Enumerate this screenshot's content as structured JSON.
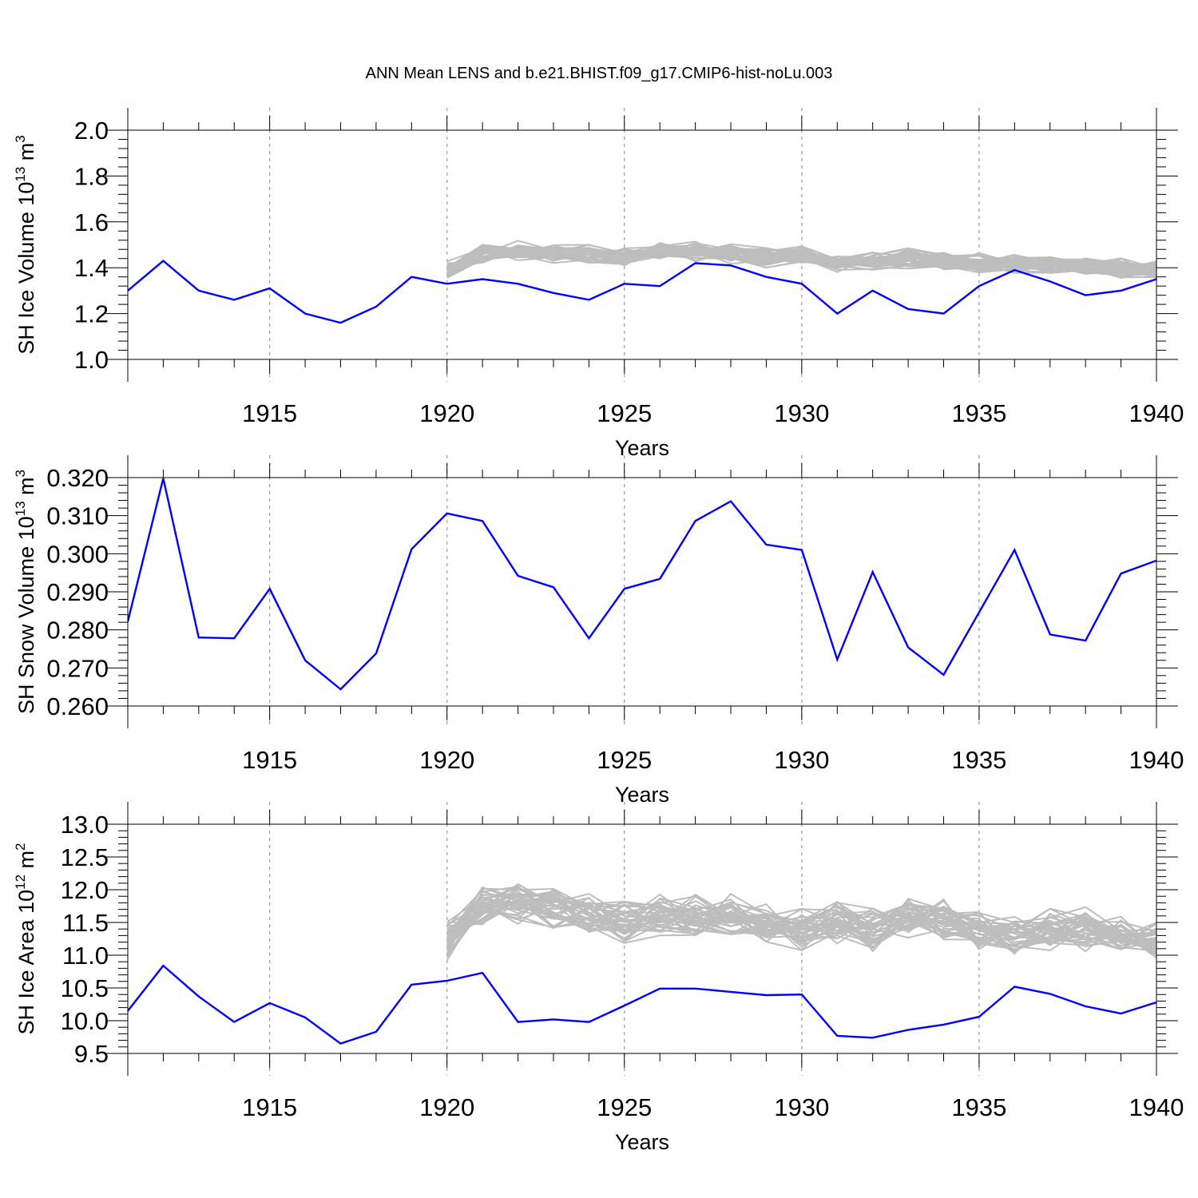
{
  "title": "ANN Mean LENS and b.e21.BHIST.f09_g17.CMIP6-hist-noLu.003",
  "colors": {
    "case": "#0000ff",
    "ensemble": "#bdbdbd",
    "axis": "#000000",
    "grid": "#9a9a9a"
  },
  "chart_data": [
    {
      "type": "line",
      "ylabel_main": "SH Ice Volume 10",
      "ylabel_exp": "13",
      "ylabel_unit": " m",
      "ylabel_unit_exp": "3",
      "xlabel": "Years",
      "xlim": [
        1911,
        1940
      ],
      "ylim": [
        1.0,
        2.0
      ],
      "xticks": [
        1915,
        1920,
        1925,
        1930,
        1935,
        1940
      ],
      "xtick_labels": [
        "1915",
        "1920",
        "1925",
        "1930",
        "1935",
        "1940"
      ],
      "yticks": [
        1.0,
        1.2,
        1.4,
        1.6,
        1.8,
        2.0
      ],
      "ytick_labels": [
        "1.0",
        "1.2",
        "1.4",
        "1.6",
        "1.8",
        "2.0"
      ],
      "vgrid": [
        1915,
        1920,
        1925,
        1930,
        1935
      ],
      "ensemble_start": 1920,
      "ensemble_spread": 0.05,
      "ensemble_envelope": [
        1.39,
        1.46,
        1.47,
        1.46,
        1.46,
        1.45,
        1.47,
        1.47,
        1.46,
        1.44,
        1.45,
        1.42,
        1.43,
        1.44,
        1.43,
        1.42,
        1.42,
        1.41,
        1.41,
        1.4,
        1.39
      ],
      "series": [
        {
          "name": "b.e21.BHIST.f09_g17.CMIP6-hist-noLu.003",
          "x": [
            1911,
            1912,
            1913,
            1914,
            1915,
            1916,
            1917,
            1918,
            1919,
            1920,
            1921,
            1922,
            1923,
            1924,
            1925,
            1926,
            1927,
            1928,
            1929,
            1930,
            1931,
            1932,
            1933,
            1934,
            1935,
            1936,
            1937,
            1938,
            1939,
            1940
          ],
          "values": [
            1.3,
            1.43,
            1.3,
            1.26,
            1.31,
            1.2,
            1.16,
            1.23,
            1.36,
            1.33,
            1.35,
            1.33,
            1.29,
            1.26,
            1.33,
            1.32,
            1.42,
            1.41,
            1.36,
            1.33,
            1.2,
            1.3,
            1.22,
            1.2,
            1.32,
            1.39,
            1.34,
            1.28,
            1.3,
            1.35
          ]
        }
      ]
    },
    {
      "type": "line",
      "ylabel_main": "SH Snow Volume 10",
      "ylabel_exp": "13",
      "ylabel_unit": " m",
      "ylabel_unit_exp": "3",
      "xlabel": "Years",
      "xlim": [
        1911,
        1940
      ],
      "ylim": [
        0.26,
        0.32
      ],
      "xticks": [
        1915,
        1920,
        1925,
        1930,
        1935,
        1940
      ],
      "xtick_labels": [
        "1915",
        "1920",
        "1925",
        "1930",
        "1935",
        "1940"
      ],
      "yticks": [
        0.26,
        0.27,
        0.28,
        0.29,
        0.3,
        0.31,
        0.32
      ],
      "ytick_labels": [
        "0.260",
        "0.270",
        "0.280",
        "0.290",
        "0.300",
        "0.310",
        "0.320"
      ],
      "vgrid": [
        1915,
        1920,
        1925,
        1930,
        1935
      ],
      "series": [
        {
          "name": "b.e21.BHIST.f09_g17.CMIP6-hist-noLu.003",
          "x": [
            1911,
            1912,
            1913,
            1914,
            1915,
            1916,
            1917,
            1918,
            1919,
            1920,
            1921,
            1922,
            1923,
            1924,
            1925,
            1926,
            1927,
            1928,
            1929,
            1930,
            1931,
            1932,
            1933,
            1934,
            1935,
            1936,
            1937,
            1938,
            1939,
            1940
          ],
          "values": [
            0.2822,
            0.3198,
            0.278,
            0.2778,
            0.2908,
            0.272,
            0.2644,
            0.2738,
            0.3012,
            0.3106,
            0.3086,
            0.2942,
            0.2912,
            0.2778,
            0.2908,
            0.2934,
            0.3086,
            0.3138,
            0.3024,
            0.301,
            0.2722,
            0.2952,
            0.2754,
            0.2682,
            0.2846,
            0.301,
            0.2788,
            0.2772,
            0.2948,
            0.2982
          ]
        }
      ]
    },
    {
      "type": "line",
      "ylabel_main": "SH Ice Area 10",
      "ylabel_exp": "12",
      "ylabel_unit": " m",
      "ylabel_unit_exp": "2",
      "xlabel": "Years",
      "xlim": [
        1911,
        1940
      ],
      "ylim": [
        9.5,
        13.0
      ],
      "xticks": [
        1915,
        1920,
        1925,
        1930,
        1935,
        1940
      ],
      "xtick_labels": [
        "1915",
        "1920",
        "1925",
        "1930",
        "1935",
        "1940"
      ],
      "yticks": [
        9.5,
        10.0,
        10.5,
        11.0,
        11.5,
        12.0,
        12.5,
        13.0
      ],
      "ytick_labels": [
        "9.5",
        "10.0",
        "10.5",
        "11.0",
        "11.5",
        "12.0",
        "12.5",
        "13.0"
      ],
      "vgrid": [
        1915,
        1920,
        1925,
        1930,
        1935
      ],
      "ensemble_start": 1920,
      "ensemble_spread": 0.38,
      "ensemble_envelope": [
        11.2,
        11.8,
        11.8,
        11.7,
        11.6,
        11.5,
        11.6,
        11.6,
        11.6,
        11.5,
        11.4,
        11.5,
        11.4,
        11.6,
        11.5,
        11.4,
        11.3,
        11.4,
        11.4,
        11.3,
        11.2
      ],
      "series": [
        {
          "name": "b.e21.BHIST.f09_g17.CMIP6-hist-noLu.003",
          "x": [
            1911,
            1912,
            1913,
            1914,
            1915,
            1916,
            1917,
            1918,
            1919,
            1920,
            1921,
            1922,
            1923,
            1924,
            1925,
            1926,
            1927,
            1928,
            1929,
            1930,
            1931,
            1932,
            1933,
            1934,
            1935,
            1936,
            1937,
            1938,
            1939,
            1940
          ],
          "values": [
            10.15,
            10.84,
            10.37,
            9.98,
            10.27,
            10.05,
            9.65,
            9.83,
            10.55,
            10.61,
            10.73,
            9.98,
            10.02,
            9.98,
            10.23,
            10.49,
            10.49,
            10.44,
            10.39,
            10.4,
            9.77,
            9.74,
            9.86,
            9.94,
            10.06,
            10.52,
            10.41,
            10.22,
            10.11,
            10.28
          ]
        }
      ]
    }
  ]
}
